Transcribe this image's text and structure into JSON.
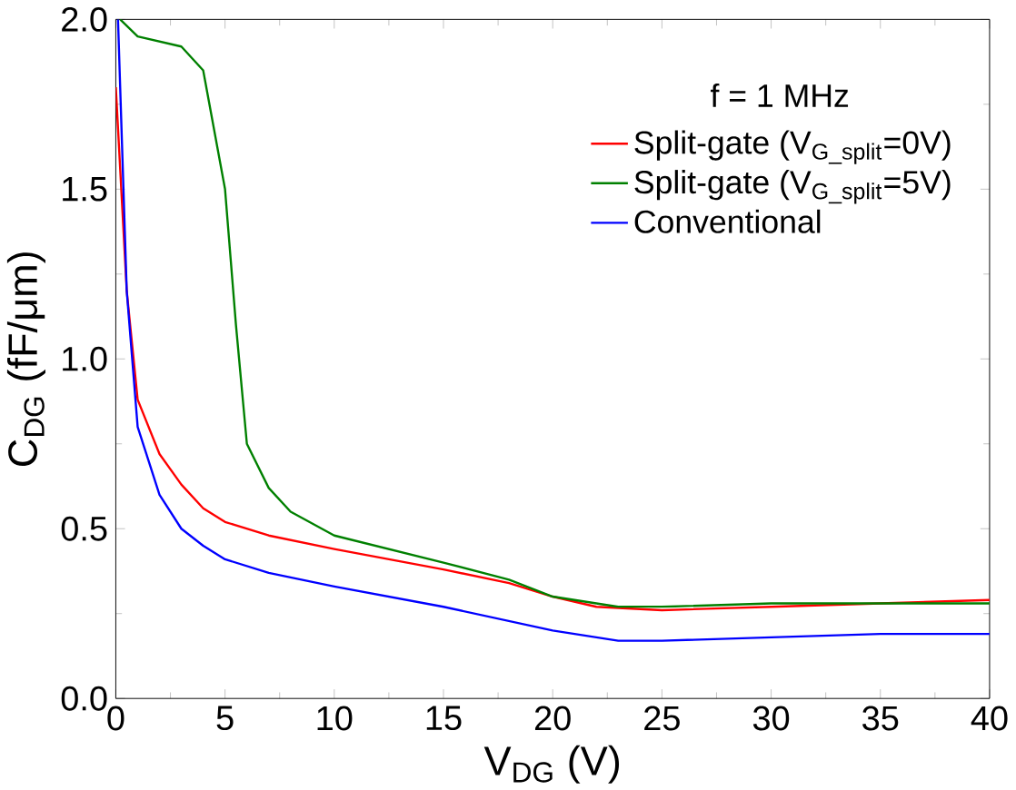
{
  "chart_data": {
    "type": "line",
    "xlabel": "V$_{DG}$ (V)",
    "ylabel": "C$_{DG}$ (fF/μm)",
    "xlim": [
      0,
      40
    ],
    "ylim": [
      0,
      2
    ],
    "xticks": [
      0,
      5,
      10,
      15,
      20,
      25,
      30,
      35,
      40
    ],
    "yticks": [
      {
        "value": 0,
        "label": "0.0"
      },
      {
        "value": 0.5,
        "label": "0.5"
      },
      {
        "value": 1,
        "label": "1.0"
      },
      {
        "value": 1.5,
        "label": "1.5"
      },
      {
        "value": 2,
        "label": "2.0"
      }
    ],
    "legend": "top right",
    "grid": false,
    "annotations": [
      "f = 1 MHz"
    ],
    "line_style": "solid",
    "marker": "none",
    "series": [
      {
        "name": "Split-gate (V$_{G_split}$=0V)",
        "color": "#ff0000",
        "x": [
          0,
          0.5,
          1,
          2,
          3,
          4,
          5,
          7,
          10,
          15,
          18,
          20,
          22,
          25,
          30,
          35,
          40
        ],
        "values": [
          1.8,
          1.2,
          0.88,
          0.72,
          0.63,
          0.56,
          0.52,
          0.48,
          0.44,
          0.38,
          0.34,
          0.3,
          0.27,
          0.26,
          0.27,
          0.28,
          0.29
        ]
      },
      {
        "name": "Split-gate (V$_{G_split}$=5V)",
        "color": "#008000",
        "x": [
          0.2,
          1,
          3,
          4,
          5,
          5.5,
          6,
          7,
          8,
          10,
          15,
          18,
          20,
          23,
          25,
          30,
          35,
          40
        ],
        "values": [
          2.0,
          1.95,
          1.92,
          1.85,
          1.5,
          1.1,
          0.75,
          0.62,
          0.55,
          0.48,
          0.4,
          0.35,
          0.3,
          0.27,
          0.27,
          0.28,
          0.28,
          0.28
        ]
      },
      {
        "name": "Conventional",
        "color": "#0000ff",
        "x": [
          0.1,
          0.5,
          1,
          2,
          3,
          4,
          5,
          7,
          10,
          15,
          20,
          23,
          25,
          30,
          35,
          40
        ],
        "values": [
          2.0,
          1.2,
          0.8,
          0.6,
          0.5,
          0.45,
          0.41,
          0.37,
          0.33,
          0.27,
          0.2,
          0.17,
          0.17,
          0.18,
          0.19,
          0.19
        ]
      }
    ]
  }
}
